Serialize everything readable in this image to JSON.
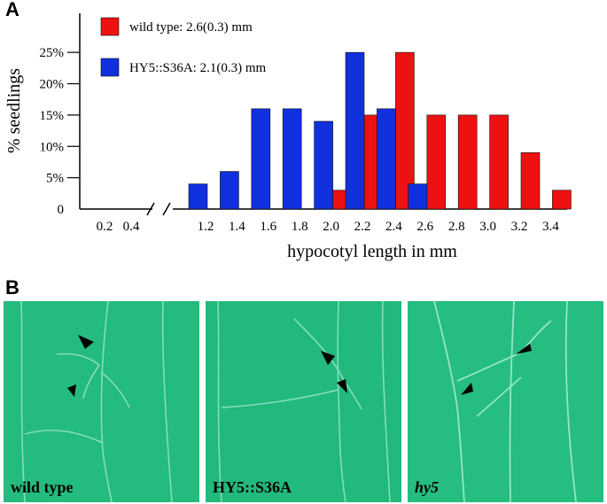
{
  "panel_a": {
    "letter": "A"
  },
  "panel_b": {
    "letter": "B"
  },
  "chart_data": {
    "type": "bar",
    "xlabel": "hypocotyl length in mm",
    "ylabel": "% seedlings",
    "y_ticks": [
      "0",
      "5%",
      "10%",
      "15%",
      "20%",
      "25%"
    ],
    "x_ticks_left": [
      "0.2",
      "0.4"
    ],
    "x_ticks": [
      "1.2",
      "1.4",
      "1.6",
      "1.8",
      "2.0",
      "2.2",
      "2.4",
      "2.6",
      "2.8",
      "3.0",
      "3.2",
      "3.4"
    ],
    "x_axis_break": true,
    "ylim": [
      0,
      27
    ],
    "grid": false,
    "legend_position": "top-left",
    "series": [
      {
        "name": "wild type: 2.6(0.3) mm",
        "color": "#ee1111",
        "x": [
          2.0,
          2.2,
          2.4,
          2.6,
          2.8,
          3.0,
          3.2,
          3.4
        ],
        "values": [
          3,
          15,
          25,
          15,
          15,
          15,
          9,
          3
        ]
      },
      {
        "name": "HY5::S36A: 2.1(0.3) mm",
        "color": "#1030dd",
        "x": [
          1.2,
          1.4,
          1.6,
          1.8,
          2.0,
          2.2,
          2.4,
          2.6
        ],
        "values": [
          4,
          6,
          16,
          16,
          14,
          25,
          16,
          4
        ]
      }
    ]
  },
  "photos": [
    {
      "label": "wild type",
      "icon": "arrowhead-icon"
    },
    {
      "label": "HY5::S36A",
      "icon": "arrowhead-icon"
    },
    {
      "label": "hy5",
      "icon": "arrowhead-icon"
    }
  ],
  "colors": {
    "photo_background": "#21b87a",
    "vein": "#8fe0c6"
  }
}
